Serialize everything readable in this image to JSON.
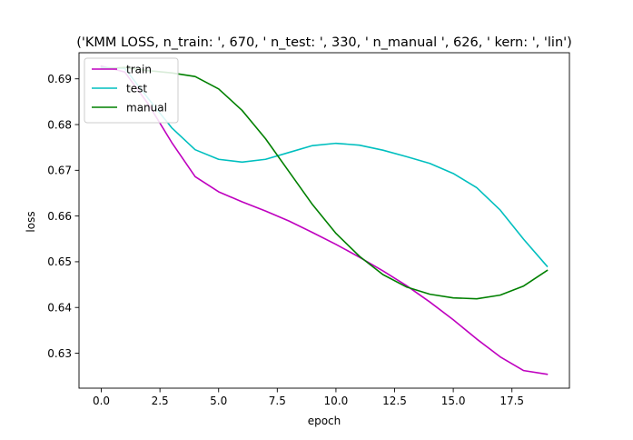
{
  "chart_data": {
    "type": "line",
    "title": "('KMM LOSS, n_train: ', 670, ' n_test: ', 330, ' n_manual ', 626, ' kern: ', 'lin')",
    "xlabel": "epoch",
    "ylabel": "loss",
    "xlim": [
      -0.95,
      19.95
    ],
    "ylim": [
      0.62235,
      0.69571
    ],
    "x_ticks": [
      0,
      2.5,
      5,
      7.5,
      10,
      12.5,
      15,
      17.5
    ],
    "x_tick_labels": [
      "0.0",
      "2.5",
      "5.0",
      "7.5",
      "10.0",
      "12.5",
      "15.0",
      "17.5"
    ],
    "y_ticks": [
      0.63,
      0.64,
      0.65,
      0.66,
      0.67,
      0.68,
      0.69
    ],
    "y_tick_labels": [
      "0.63",
      "0.64",
      "0.65",
      "0.66",
      "0.67",
      "0.68",
      "0.69"
    ],
    "grid": false,
    "legend_position": "upper-left",
    "x": [
      0,
      1,
      2,
      3,
      4,
      5,
      6,
      7,
      8,
      9,
      10,
      11,
      12,
      13,
      14,
      15,
      16,
      17,
      18,
      19
    ],
    "series": [
      {
        "name": "train",
        "color": "#bf00bf",
        "values": [
          0.6928,
          0.6915,
          0.6845,
          0.6761,
          0.6686,
          0.6653,
          0.6631,
          0.6611,
          0.6589,
          0.6564,
          0.6538,
          0.651,
          0.648,
          0.6448,
          0.6412,
          0.6373,
          0.6331,
          0.6292,
          0.6262,
          0.6254
        ]
      },
      {
        "name": "test",
        "color": "#00bfbf",
        "values": [
          0.6925,
          0.6923,
          0.6857,
          0.6793,
          0.6745,
          0.6724,
          0.6718,
          0.6724,
          0.6739,
          0.6754,
          0.6759,
          0.6755,
          0.6744,
          0.673,
          0.6715,
          0.6693,
          0.6662,
          0.6613,
          0.6549,
          0.649
        ]
      },
      {
        "name": "manual",
        "color": "#008000",
        "values": [
          0.6922,
          0.6925,
          0.6918,
          0.6913,
          0.6905,
          0.6878,
          0.6831,
          0.6769,
          0.6697,
          0.6625,
          0.6562,
          0.6512,
          0.6472,
          0.6445,
          0.6429,
          0.6421,
          0.6419,
          0.6427,
          0.6447,
          0.6481
        ]
      }
    ]
  }
}
